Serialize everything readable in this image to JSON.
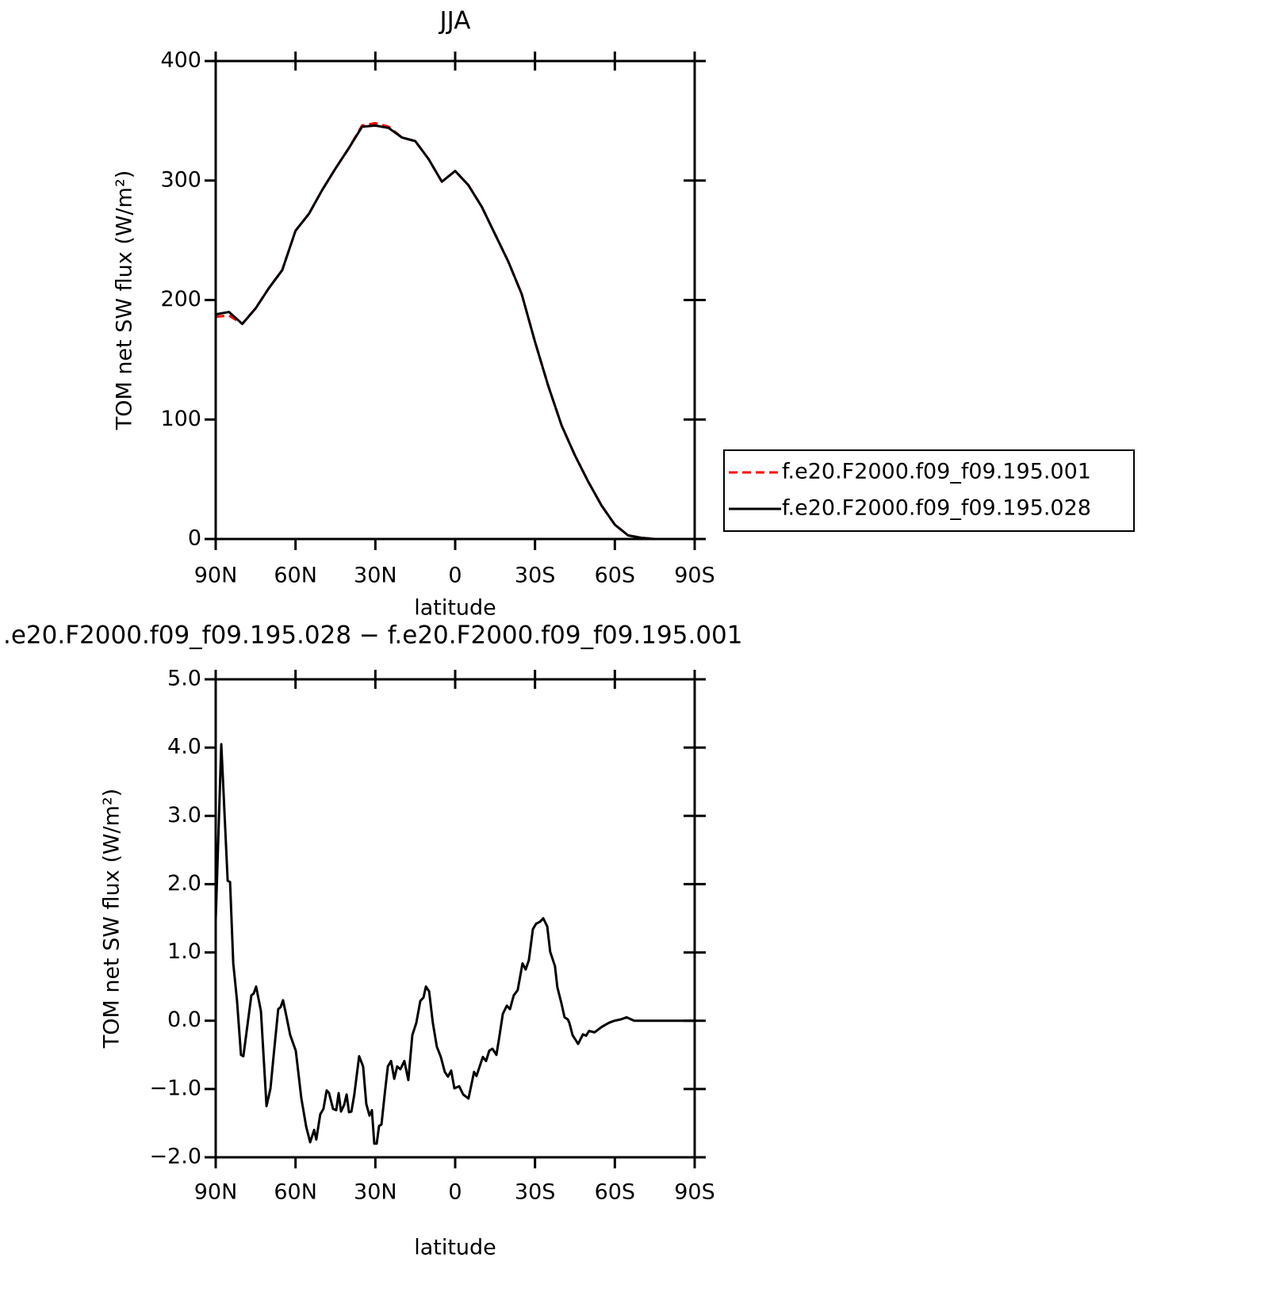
{
  "chart_data": [
    {
      "type": "line",
      "title": "JJA",
      "xlabel": "latitude",
      "ylabel": "TOM net SW flux (W/m²)",
      "x": [
        90,
        85,
        80,
        75,
        70,
        65,
        60,
        55,
        50,
        45,
        40,
        35,
        30,
        25,
        20,
        15,
        10,
        5,
        0,
        -5,
        -10,
        -15,
        -20,
        -25,
        -30,
        -35,
        -40,
        -45,
        -50,
        -55,
        -60,
        -65,
        -70,
        -75,
        -80,
        -85,
        -90
      ],
      "xlim": [
        90,
        -90
      ],
      "xticks": [
        {
          "value": 90,
          "label": "90N"
        },
        {
          "value": 60,
          "label": "60N"
        },
        {
          "value": 30,
          "label": "30N"
        },
        0,
        {
          "value": -30,
          "label": "30S"
        },
        {
          "value": -60,
          "label": "60S"
        },
        {
          "value": -90,
          "label": "90S"
        }
      ],
      "ylim": [
        0,
        400
      ],
      "yticks": [
        0,
        100,
        200,
        300,
        400
      ],
      "legend": "right",
      "series": [
        {
          "name": "f.e20.F2000.f09_f09.195.001",
          "color": "#ff0000",
          "dash": true,
          "values": [
            186,
            187,
            180,
            193,
            210,
            225,
            258,
            272,
            292,
            310,
            327,
            346,
            348,
            345,
            336,
            333,
            318,
            299,
            308,
            296,
            278,
            255,
            232,
            205,
            165,
            128,
            95,
            70,
            48,
            28,
            12,
            3,
            1,
            0,
            0,
            0,
            0
          ]
        },
        {
          "name": "f.e20.F2000.f09_f09.195.028",
          "color": "#000000",
          "dash": false,
          "values": [
            188,
            190,
            180,
            193,
            210,
            225,
            258,
            272,
            292,
            310,
            327,
            345,
            346,
            344,
            336,
            333,
            318,
            299,
            308,
            296,
            278,
            255,
            232,
            205,
            165,
            128,
            95,
            70,
            48,
            28,
            12,
            3,
            1,
            0,
            0,
            0,
            0
          ]
        }
      ]
    },
    {
      "type": "line",
      "title": ".e20.F2000.f09_f09.195.028 − f.e20.F2000.f09_f09.195.001",
      "xlabel": "latitude",
      "ylabel": "TOM net SW flux (W/m²)",
      "x": [
        90,
        87.9,
        85.5,
        84.6,
        83.4,
        82,
        80.5,
        79.6,
        76.6,
        75.7,
        74.8,
        73,
        70.9,
        69.4,
        68.2,
        66.5,
        65.6,
        64.7,
        63.5,
        62,
        59.9,
        57.8,
        56,
        54.5,
        53,
        52.2,
        50.7,
        49.5,
        48.3,
        47.4,
        45.9,
        44.7,
        43.8,
        42.9,
        41.7,
        40.8,
        39.9,
        39,
        37.9,
        36.1,
        34.6,
        33.4,
        32.2,
        31.3,
        30.4,
        29.5,
        28.6,
        27.7,
        26.5,
        25.3,
        24.1,
        22.9,
        21.8,
        20.6,
        19.1,
        17.6,
        16.1,
        14.6,
        13.1,
        11.9,
        11,
        9.8,
        8.4,
        6.9,
        5.4,
        3.9,
        2.7,
        1.5,
        0.3,
        -1.5,
        -3,
        -5,
        -7.1,
        -8,
        -9.2,
        -10.4,
        -11.6,
        -12.8,
        -14,
        -15.5,
        -16.7,
        -17.9,
        -19.4,
        -20.6,
        -22,
        -23.5,
        -25.3,
        -26.5,
        -27.7,
        -29.2,
        -30.4,
        -31.9,
        -33.1,
        -34.6,
        -35.7,
        -37.5,
        -38.4,
        -39.9,
        -41.1,
        -42.3,
        -42.9,
        -44.1,
        -46.2,
        -48,
        -49.2,
        -50.3,
        -52.4,
        -55.1,
        -57.8,
        -59.9,
        -62.3,
        -64.4,
        -67.3,
        -70.3,
        -90
      ],
      "xlim": [
        90,
        -90
      ],
      "xticks": [
        {
          "value": 90,
          "label": "90N"
        },
        {
          "value": 60,
          "label": "60N"
        },
        {
          "value": 30,
          "label": "30N"
        },
        0,
        {
          "value": -30,
          "label": "30S"
        },
        {
          "value": -60,
          "label": "60S"
        },
        {
          "value": -90,
          "label": "90S"
        }
      ],
      "ylim": [
        -2,
        5
      ],
      "yticks": [
        {
          "value": -2,
          "label": "−2.0"
        },
        {
          "value": -1,
          "label": "−1.0"
        },
        {
          "value": 0,
          "label": "0.0"
        },
        {
          "value": 1,
          "label": "1.0"
        },
        {
          "value": 2,
          "label": "2.0"
        },
        {
          "value": 3,
          "label": "3.0"
        },
        {
          "value": 4,
          "label": "4.0"
        },
        {
          "value": 5,
          "label": "5.0"
        }
      ],
      "color": "#000000",
      "values": [
        1.47,
        4.05,
        2.05,
        2.03,
        0.84,
        0.3,
        -0.5,
        -0.52,
        0.37,
        0.4,
        0.5,
        0.14,
        -1.25,
        -0.99,
        -0.5,
        0.17,
        0.2,
        0.3,
        0.08,
        -0.21,
        -0.44,
        -1.14,
        -1.55,
        -1.78,
        -1.6,
        -1.74,
        -1.37,
        -1.29,
        -1.02,
        -1.06,
        -1.29,
        -1.31,
        -1.06,
        -1.33,
        -1.23,
        -1.08,
        -1.34,
        -1.33,
        -1.08,
        -0.52,
        -0.67,
        -1.22,
        -1.39,
        -1.31,
        -1.8,
        -1.8,
        -1.54,
        -1.52,
        -1.08,
        -0.67,
        -0.59,
        -0.85,
        -0.67,
        -0.71,
        -0.59,
        -0.87,
        -0.21,
        -0.03,
        0.29,
        0.34,
        0.5,
        0.43,
        -0.03,
        -0.38,
        -0.53,
        -0.75,
        -0.82,
        -0.73,
        -0.99,
        -0.96,
        -1.08,
        -1.14,
        -0.75,
        -0.81,
        -0.67,
        -0.53,
        -0.59,
        -0.44,
        -0.41,
        -0.5,
        -0.21,
        0.1,
        0.22,
        0.17,
        0.37,
        0.45,
        0.84,
        0.75,
        0.89,
        1.34,
        1.42,
        1.45,
        1.5,
        1.38,
        1.01,
        0.8,
        0.49,
        0.26,
        0.05,
        0.02,
        -0.03,
        -0.21,
        -0.34,
        -0.2,
        -0.22,
        -0.15,
        -0.17,
        -0.09,
        -0.03,
        0,
        0.02,
        0.05,
        0,
        0,
        0
      ]
    }
  ]
}
